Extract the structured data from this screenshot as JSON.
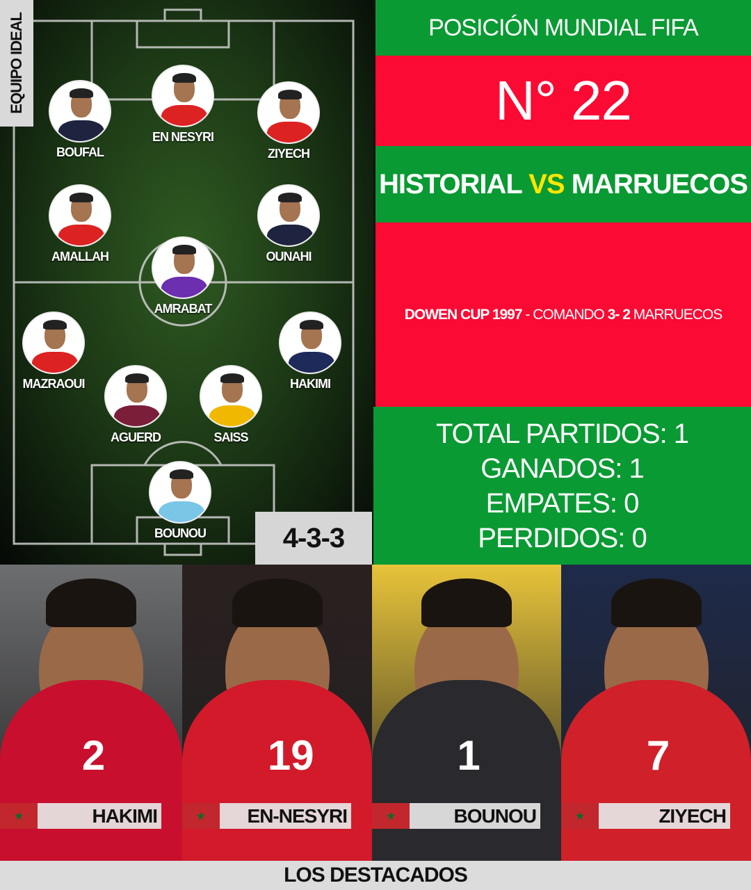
{
  "lineup": {
    "side_label": "EQUIPO IDEAL",
    "formation": "4-3-3",
    "players": [
      {
        "name": "BOUFAL",
        "shirt": "#1e2340"
      },
      {
        "name": "EN NESYRI",
        "shirt": "#d22"
      },
      {
        "name": "ZIYECH",
        "shirt": "#d22"
      },
      {
        "name": "AMALLAH",
        "shirt": "#d22"
      },
      {
        "name": "OUNAHI",
        "shirt": "#1e2340"
      },
      {
        "name": "AMRABAT",
        "shirt": "#6b2fb0"
      },
      {
        "name": "MAZRAOUI",
        "shirt": "#d22"
      },
      {
        "name": "HAKIMI",
        "shirt": "#1e2a5a"
      },
      {
        "name": "AGUERD",
        "shirt": "#7a1e3a"
      },
      {
        "name": "SAISS",
        "shirt": "#f0b800"
      },
      {
        "name": "BOUNOU",
        "shirt": "#7ac6e6"
      }
    ]
  },
  "ranking": {
    "title": "POSICIÓN MUNDIAL FIFA",
    "value": "N° 22"
  },
  "history": {
    "title_a": "HISTORIAL",
    "title_vs": "VS",
    "title_b": "MARRUECOS",
    "match_event": "DOWEN CUP 1997",
    "match_sep": " - ",
    "match_team_a": "COMANDO",
    "match_score": "3- 2",
    "match_team_b": "MARRUECOS"
  },
  "stats": {
    "total": "TOTAL PARTIDOS: 1",
    "won": "GANADOS: 1",
    "draws": "EMPATES: 0",
    "lost": "PERDIDOS: 0"
  },
  "colors": {
    "green": "#0a9a33",
    "red": "#fb0a34",
    "vs_yellow": "#ffe600"
  },
  "highlights": {
    "title": "LOS DESTACADOS",
    "players": [
      {
        "name": "HAKIMI",
        "number": "2"
      },
      {
        "name": "EN-NESYRI",
        "number": "19"
      },
      {
        "name": "BOUNOU",
        "number": "1"
      },
      {
        "name": "ZIYECH",
        "number": "7"
      }
    ]
  }
}
